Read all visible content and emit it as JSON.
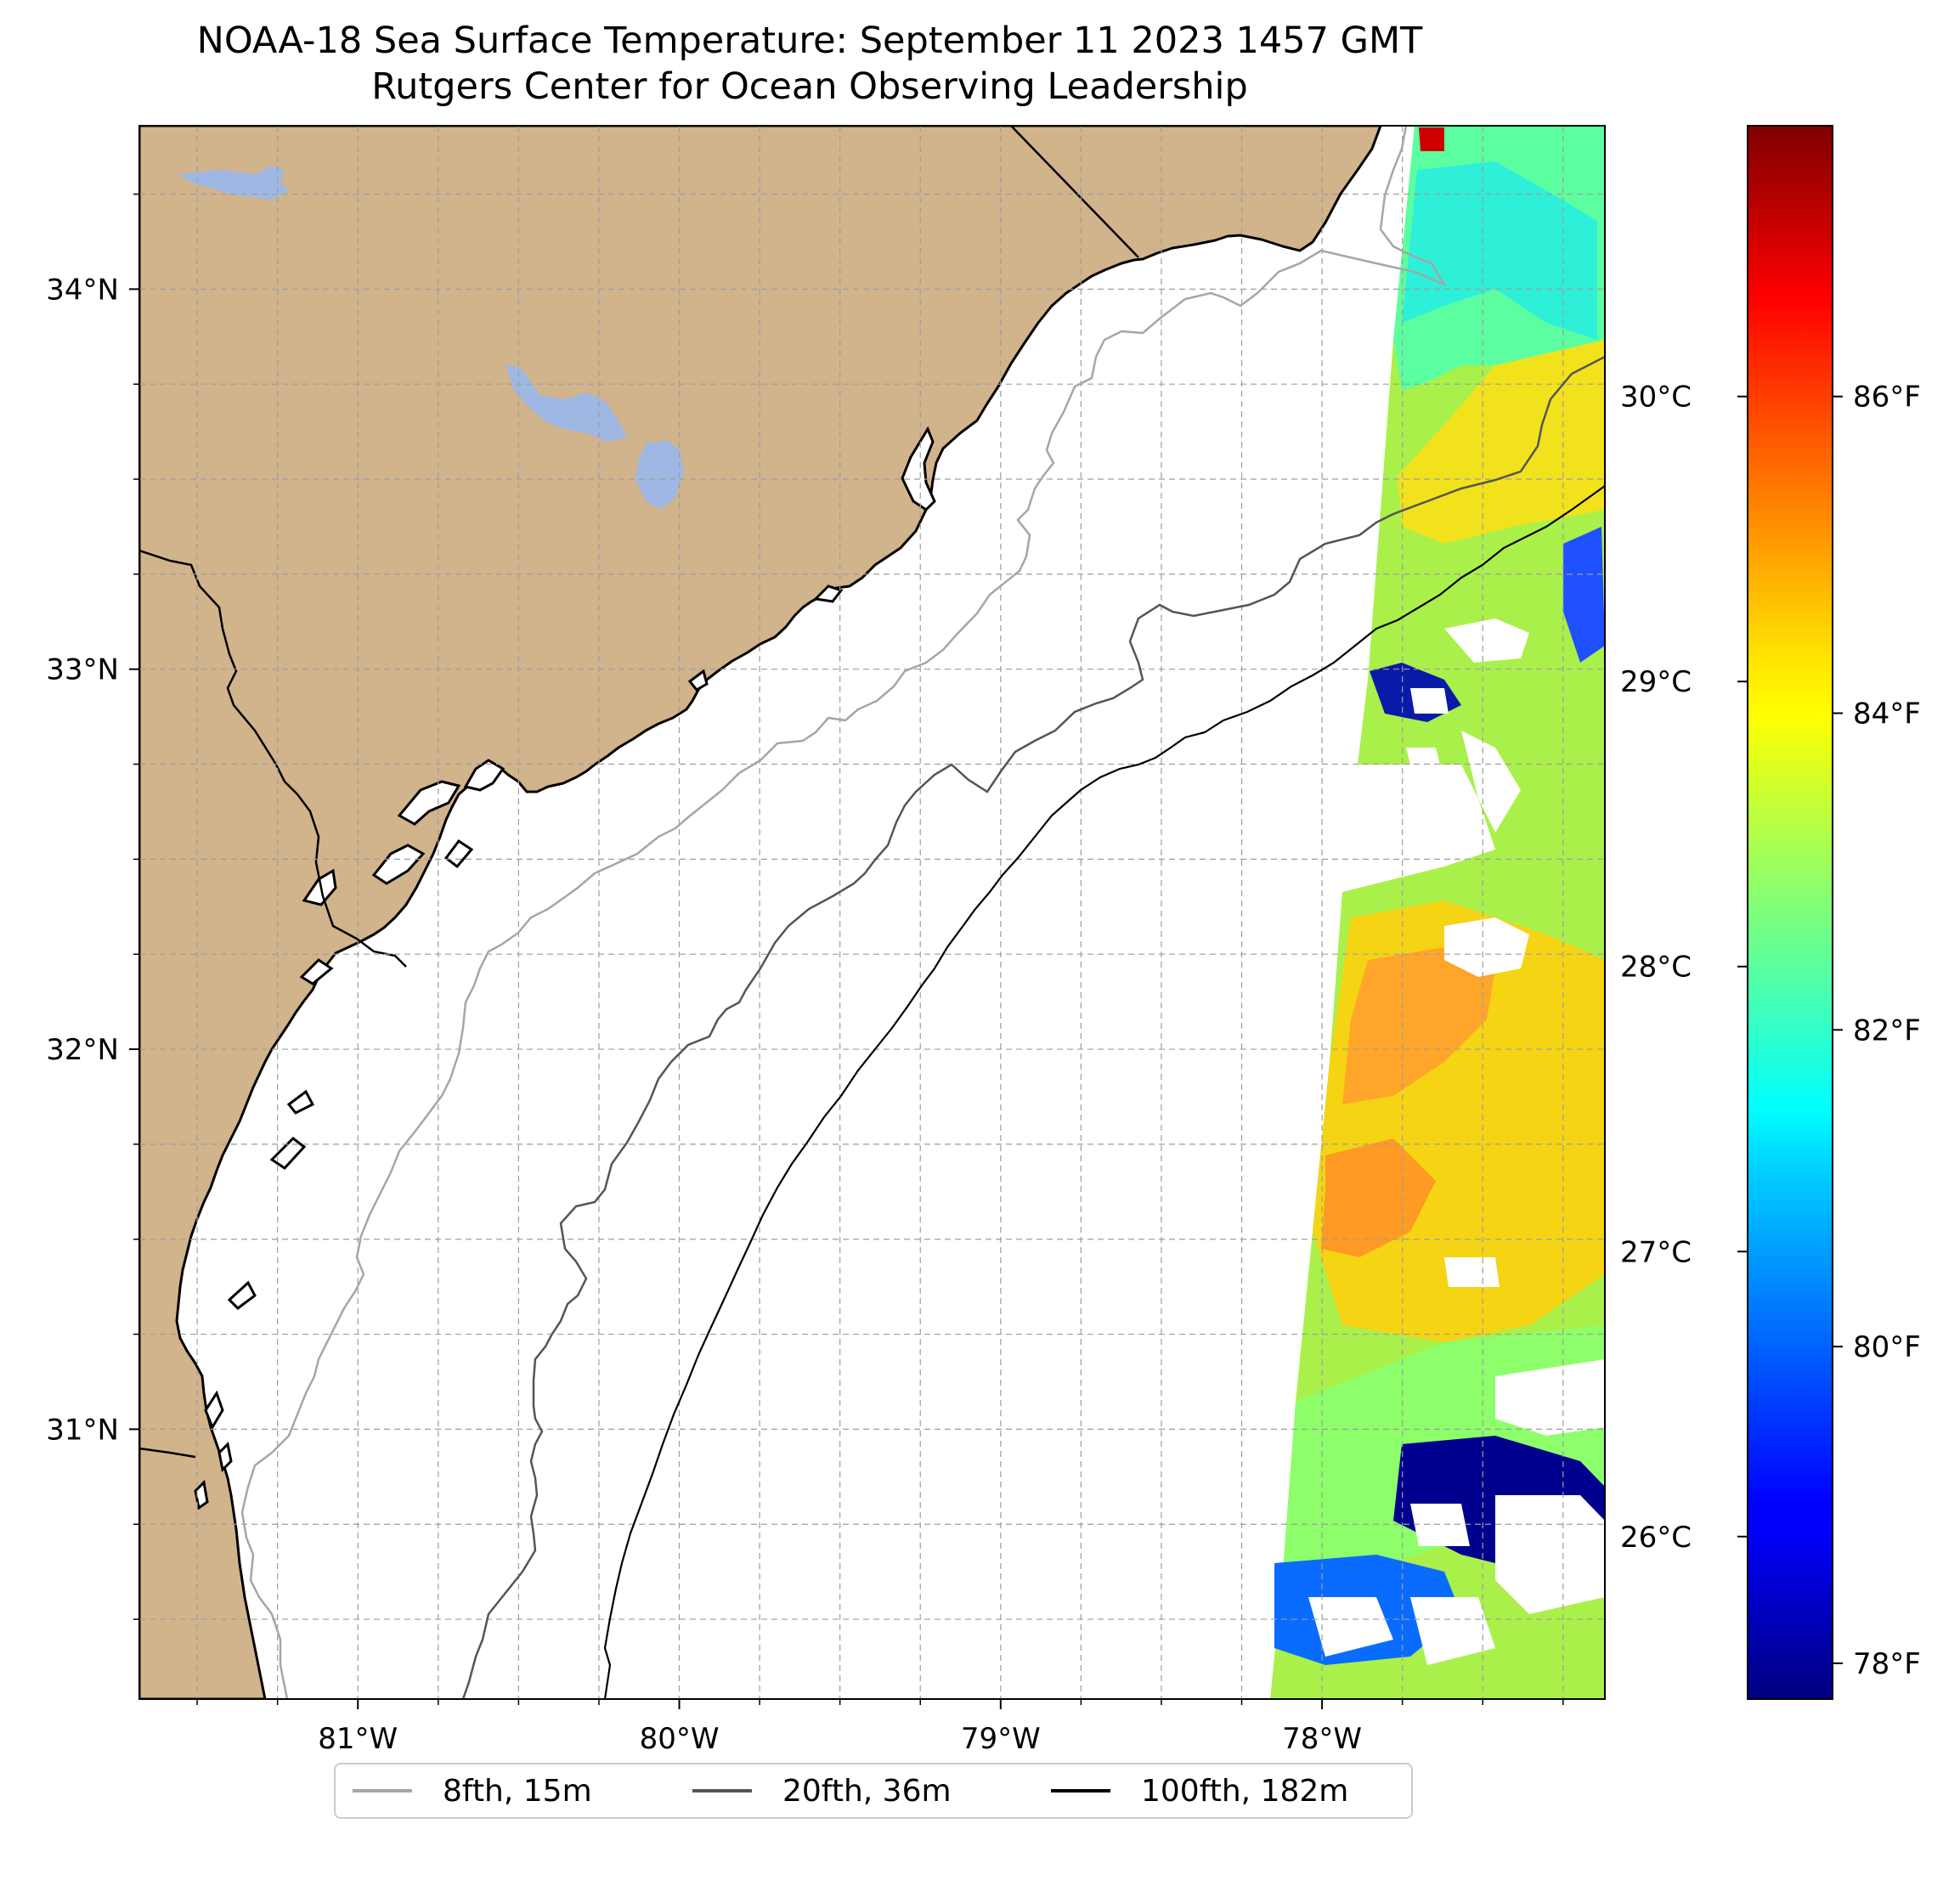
{
  "title": {
    "line1": "NOAA-18 Sea Surface Temperature: September 11 2023 1457 GMT",
    "line2": "Rutgers Center for Ocean Observing Leadership"
  },
  "map": {
    "lon_range": [
      -81.68,
      -77.12
    ],
    "lat_range": [
      30.29,
      34.43
    ],
    "lon_ticks": [
      {
        "value": -81,
        "label": "81°W"
      },
      {
        "value": -80,
        "label": "80°W"
      },
      {
        "value": -79,
        "label": "79°W"
      },
      {
        "value": -78,
        "label": "78°W"
      }
    ],
    "lat_ticks": [
      {
        "value": 34,
        "label": "34°N"
      },
      {
        "value": 33,
        "label": "33°N"
      },
      {
        "value": 32,
        "label": "32°N"
      },
      {
        "value": 31,
        "label": "31°N"
      }
    ],
    "gridline_spacing_deg": 0.25,
    "land_color": "#d1b38c",
    "water_body_color": "#9fb8e3",
    "sst_swath_western_edge_lon": [
      -78.0,
      -77.8
    ],
    "sst_typical_range_c": [
      25.5,
      29.3
    ]
  },
  "colorbar": {
    "colormap": "jet",
    "range_c": [
      25.43,
      30.95
    ],
    "celsius_ticks": [
      {
        "value": 26,
        "label": "26°C"
      },
      {
        "value": 27,
        "label": "27°C"
      },
      {
        "value": 28,
        "label": "28°C"
      },
      {
        "value": 29,
        "label": "29°C"
      },
      {
        "value": 30,
        "label": "30°C"
      }
    ],
    "fahrenheit_ticks": [
      {
        "value": 78,
        "label": "78°F"
      },
      {
        "value": 80,
        "label": "80°F"
      },
      {
        "value": 82,
        "label": "82°F"
      },
      {
        "value": 84,
        "label": "84°F"
      },
      {
        "value": 86,
        "label": "86°F"
      }
    ]
  },
  "legend": {
    "items": [
      {
        "label": "8fth, 15m",
        "color": "#a6a6a6"
      },
      {
        "label": "20fth, 36m",
        "color": "#555555"
      },
      {
        "label": "100fth, 182m",
        "color": "#000000"
      }
    ]
  }
}
